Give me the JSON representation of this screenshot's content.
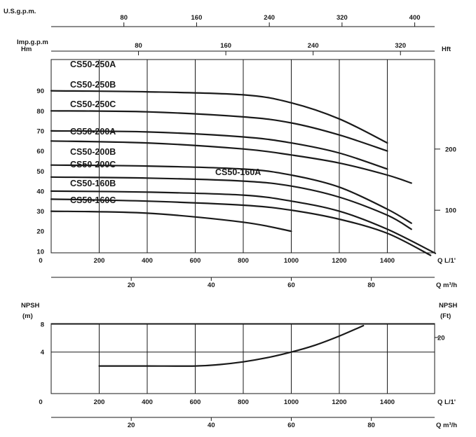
{
  "chart_data": [
    {
      "type": "line",
      "title": "",
      "xlabel": "Q L/1'",
      "ylabel": "Hm",
      "right_label": "Hft",
      "xlim": [
        0,
        1600
      ],
      "ylim": [
        0,
        95
      ],
      "x_ticks": [
        0,
        200,
        400,
        600,
        800,
        1000,
        1200,
        1400
      ],
      "y_ticks": [
        10,
        20,
        30,
        40,
        50,
        60,
        70,
        80,
        90
      ],
      "right_ticks": [
        100,
        200
      ],
      "grid": true,
      "extra_axes": [
        {
          "label": "U.S.g.p.m.",
          "ticks": [
            "80",
            "160",
            "240",
            "320",
            "400"
          ],
          "values": [
            80,
            160,
            240,
            320,
            400
          ],
          "per_lmin": 0.264172
        },
        {
          "label": "Imp.g.p.m",
          "ticks": [
            "80",
            "160",
            "240",
            "320"
          ],
          "values": [
            80,
            160,
            240,
            320
          ],
          "per_lmin": 0.219969
        },
        {
          "label": "Q m³/h",
          "ticks": [
            "20",
            "40",
            "60",
            "80"
          ],
          "values": [
            20,
            40,
            60,
            80
          ],
          "per_lmin": 0.06
        }
      ],
      "series": [
        {
          "name": "CS50-250A",
          "x": [
            0,
            400,
            800,
            1000,
            1200,
            1400
          ],
          "y": [
            90,
            89.5,
            88,
            84,
            76,
            64
          ]
        },
        {
          "name": "CS50-250B",
          "x": [
            0,
            400,
            800,
            1000,
            1200,
            1400
          ],
          "y": [
            80,
            79.5,
            77,
            74,
            68,
            60
          ]
        },
        {
          "name": "CS50-250C",
          "x": [
            0,
            400,
            800,
            1000,
            1200,
            1400
          ],
          "y": [
            70,
            69.5,
            67,
            64,
            59,
            51
          ]
        },
        {
          "name": "CS50-200A",
          "x": [
            0,
            400,
            800,
            1000,
            1200,
            1400,
            1500
          ],
          "y": [
            65,
            64,
            61,
            58,
            54,
            48,
            44
          ]
        },
        {
          "name": "CS50-200B",
          "x": [
            0,
            400,
            800,
            1000,
            1200,
            1400,
            1500
          ],
          "y": [
            53,
            52.5,
            51,
            48,
            42,
            31,
            24
          ]
        },
        {
          "name": "CS50-200C",
          "x": [
            0,
            400,
            800,
            1000,
            1200,
            1400,
            1500
          ],
          "y": [
            47,
            46.5,
            45,
            42.5,
            37,
            28,
            21
          ]
        },
        {
          "name": "CS50-160A",
          "x": [
            0,
            400,
            800,
            1000,
            1200,
            1400,
            1600
          ],
          "y": [
            40,
            39.5,
            38,
            35,
            30,
            21,
            9
          ]
        },
        {
          "name": "CS50-160B",
          "x": [
            0,
            400,
            800,
            1000,
            1200,
            1400,
            1580
          ],
          "y": [
            36,
            35,
            33,
            30.5,
            26,
            19,
            8
          ]
        },
        {
          "name": "CS50-160C",
          "x": [
            0,
            400,
            800,
            1000
          ],
          "y": [
            30,
            29,
            24.5,
            20
          ]
        }
      ]
    },
    {
      "type": "line",
      "title": "",
      "xlabel": "Q L/1'",
      "ylabel": "NPSH",
      "ylabel_unit": "(m)",
      "right_label": "NPSH",
      "right_unit": "(Ft)",
      "xlim": [
        0,
        1600
      ],
      "ylim": [
        0,
        10
      ],
      "x_ticks": [
        0,
        200,
        400,
        600,
        800,
        1000,
        1200,
        1400
      ],
      "y_ticks": [
        4,
        8
      ],
      "right_ticks": [
        20
      ],
      "grid": true,
      "extra_axes": [
        {
          "label": "Q m³/h",
          "ticks": [
            "20",
            "40",
            "60",
            "80"
          ],
          "values": [
            20,
            40,
            60,
            80
          ],
          "per_lmin": 0.06
        }
      ],
      "series": [
        {
          "x": [
            200,
            400,
            600,
            700,
            800,
            900,
            1000,
            1100,
            1200,
            1300
          ],
          "y": [
            2,
            2,
            2,
            2.2,
            2.6,
            3.2,
            4,
            5,
            6.3,
            7.8
          ]
        }
      ]
    }
  ]
}
